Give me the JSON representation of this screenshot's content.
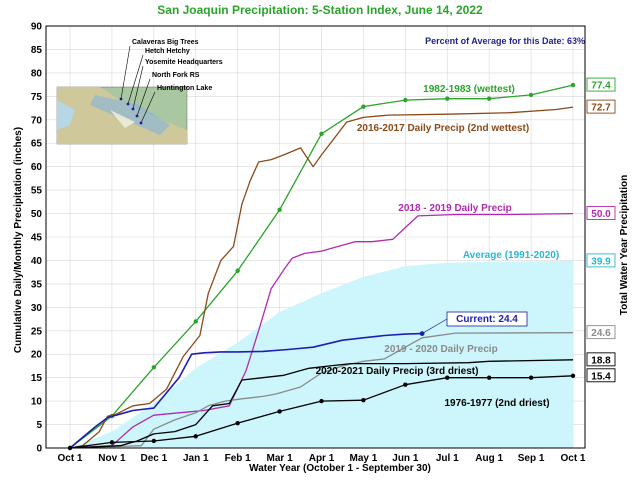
{
  "chart_data": {
    "type": "line",
    "title": "San Joaquin Precipitation: 5-Station Index, June 14, 2022",
    "percent_note": "Percent of Average for this Date: 63%",
    "xlabel": "Water Year (October 1 - September 30)",
    "ylabel_left": "Cumulative Daily/Monthly Precipitation (inches)",
    "ylabel_right": "Total Water Year Precipitation",
    "ylim": [
      0,
      90
    ],
    "yticks": [
      "0",
      "5",
      "10",
      "15",
      "20",
      "25",
      "30",
      "35",
      "40",
      "45",
      "50",
      "55",
      "60",
      "65",
      "70",
      "75",
      "80",
      "85",
      "90"
    ],
    "xticks": [
      "Oct 1",
      "Nov 1",
      "Dec 1",
      "Jan 1",
      "Feb 1",
      "Mar 1",
      "Apr 1",
      "May 1",
      "Jun 1",
      "Jul 1",
      "Aug 1",
      "Sep 1",
      "Oct 1"
    ],
    "map_stations": [
      "Calaveras Big Trees",
      "Hetch Hetchy",
      "Yosemite Headquarters",
      "North Fork RS",
      "Huntington Lake"
    ],
    "series": [
      {
        "name": "1982-1983 (wettest)",
        "color": "#2aa52a",
        "end_value": "77.4",
        "points": [
          [
            0,
            0
          ],
          [
            1,
            6.8
          ],
          [
            2,
            17.2
          ],
          [
            3,
            27.0
          ],
          [
            4,
            37.8
          ],
          [
            5,
            50.8
          ],
          [
            6,
            67.0
          ],
          [
            7,
            72.8
          ],
          [
            8,
            74.2
          ],
          [
            9,
            74.5
          ],
          [
            10,
            74.5
          ],
          [
            11,
            75.3
          ],
          [
            12,
            77.4
          ]
        ]
      },
      {
        "name": "2016-2017 Daily Precip (2nd wettest)",
        "color": "#8b4a1a",
        "end_value": "72.7",
        "points": [
          [
            0,
            0
          ],
          [
            0.3,
            0.5
          ],
          [
            0.7,
            3.5
          ],
          [
            0.9,
            6.8
          ],
          [
            1.1,
            7.2
          ],
          [
            1.5,
            9.0
          ],
          [
            1.9,
            9.5
          ],
          [
            2.3,
            12.5
          ],
          [
            2.7,
            19.5
          ],
          [
            3.1,
            24.0
          ],
          [
            3.3,
            33.0
          ],
          [
            3.6,
            40.0
          ],
          [
            3.9,
            43.0
          ],
          [
            4.1,
            52.0
          ],
          [
            4.3,
            57.0
          ],
          [
            4.5,
            61.0
          ],
          [
            4.8,
            61.5
          ],
          [
            5.1,
            62.5
          ],
          [
            5.5,
            64.0
          ],
          [
            5.8,
            60.0
          ],
          [
            6.0,
            62.5
          ],
          [
            6.3,
            66.0
          ],
          [
            6.6,
            69.5
          ],
          [
            7.0,
            70.5
          ],
          [
            7.6,
            71.0
          ],
          [
            9.0,
            71.2
          ],
          [
            10.5,
            71.5
          ],
          [
            11.6,
            72.2
          ],
          [
            12,
            72.7
          ]
        ]
      },
      {
        "name": "2018 - 2019 Daily Precip",
        "color": "#b02ab0",
        "end_value": "50.0",
        "points": [
          [
            0,
            0
          ],
          [
            1.0,
            0.5
          ],
          [
            1.5,
            4.5
          ],
          [
            2.0,
            7.0
          ],
          [
            2.6,
            7.5
          ],
          [
            3.2,
            8.0
          ],
          [
            3.8,
            9.0
          ],
          [
            4.2,
            16.5
          ],
          [
            4.5,
            25.0
          ],
          [
            4.8,
            34.0
          ],
          [
            5.1,
            38.0
          ],
          [
            5.3,
            40.5
          ],
          [
            5.6,
            41.5
          ],
          [
            6.0,
            42.0
          ],
          [
            6.4,
            43.0
          ],
          [
            6.8,
            44.0
          ],
          [
            7.2,
            44.0
          ],
          [
            7.7,
            44.5
          ],
          [
            8.0,
            47.0
          ],
          [
            8.3,
            49.5
          ],
          [
            9.2,
            49.8
          ],
          [
            10.5,
            49.8
          ],
          [
            12,
            50.0
          ]
        ]
      },
      {
        "name": "Current: 24.4",
        "color": "#1f1faf",
        "end_value": "",
        "points": [
          [
            0,
            0
          ],
          [
            0.6,
            4.5
          ],
          [
            0.9,
            6.5
          ],
          [
            1.5,
            8.0
          ],
          [
            2.0,
            8.5
          ],
          [
            2.6,
            15.0
          ],
          [
            2.9,
            20.0
          ],
          [
            3.2,
            20.3
          ],
          [
            3.6,
            20.5
          ],
          [
            4.0,
            20.5
          ],
          [
            4.6,
            20.6
          ],
          [
            5.2,
            21.0
          ],
          [
            5.8,
            21.5
          ],
          [
            6.5,
            23.0
          ],
          [
            7.0,
            23.5
          ],
          [
            7.5,
            24.0
          ],
          [
            8.0,
            24.3
          ],
          [
            8.4,
            24.4
          ]
        ]
      },
      {
        "name": "2019 - 2020 Daily Precip",
        "color": "#8a8a8a",
        "end_value": "24.6",
        "points": [
          [
            0,
            0
          ],
          [
            1.7,
            0.5
          ],
          [
            2.0,
            4.0
          ],
          [
            2.5,
            6.0
          ],
          [
            3.0,
            7.5
          ],
          [
            3.3,
            9.0
          ],
          [
            3.7,
            10.0
          ],
          [
            4.1,
            10.5
          ],
          [
            4.6,
            11.0
          ],
          [
            4.9,
            11.5
          ],
          [
            5.5,
            13.0
          ],
          [
            6.0,
            16.0
          ],
          [
            6.5,
            17.5
          ],
          [
            7.0,
            18.5
          ],
          [
            7.5,
            19.0
          ],
          [
            8.0,
            21.5
          ],
          [
            8.4,
            23.5
          ],
          [
            9.2,
            24.5
          ],
          [
            12,
            24.6
          ]
        ]
      },
      {
        "name": "2020-2021 Daily Precip (3rd driest)",
        "color": "#000000",
        "end_value": "18.8",
        "points": [
          [
            0,
            0
          ],
          [
            1.2,
            0.5
          ],
          [
            1.6,
            1.5
          ],
          [
            2.0,
            3.0
          ],
          [
            2.5,
            3.5
          ],
          [
            3.0,
            5.0
          ],
          [
            3.4,
            9.0
          ],
          [
            3.8,
            9.5
          ],
          [
            4.1,
            14.5
          ],
          [
            4.6,
            15.0
          ],
          [
            5.1,
            15.5
          ],
          [
            5.7,
            17.0
          ],
          [
            6.2,
            17.5
          ],
          [
            6.7,
            18.0
          ],
          [
            8.0,
            18.0
          ],
          [
            9.5,
            18.2
          ],
          [
            10.0,
            18.5
          ],
          [
            12,
            18.8
          ]
        ]
      },
      {
        "name": "1976-1977 (2nd driest)",
        "color": "#000000",
        "end_value": "15.4",
        "points": [
          [
            0,
            0
          ],
          [
            1,
            1.2
          ],
          [
            2,
            1.5
          ],
          [
            3,
            2.5
          ],
          [
            4,
            5.3
          ],
          [
            5,
            7.8
          ],
          [
            6,
            10.0
          ],
          [
            7,
            10.2
          ],
          [
            8,
            13.5
          ],
          [
            9,
            15.0
          ],
          [
            10,
            15.0
          ],
          [
            11,
            15.0
          ],
          [
            12,
            15.4
          ]
        ]
      },
      {
        "name": "Average (1991-2020)",
        "color": "#00d0e0",
        "fill": "#ccf6fb",
        "end_value": "39.9",
        "points": [
          [
            0,
            0
          ],
          [
            1,
            3.5
          ],
          [
            2,
            9.5
          ],
          [
            3,
            17.0
          ],
          [
            4,
            22.5
          ],
          [
            5,
            29.0
          ],
          [
            6,
            33.0
          ],
          [
            7,
            36.5
          ],
          [
            8,
            38.8
          ],
          [
            9,
            39.5
          ],
          [
            10,
            39.7
          ],
          [
            11,
            39.8
          ],
          [
            12,
            39.9
          ]
        ]
      }
    ]
  }
}
